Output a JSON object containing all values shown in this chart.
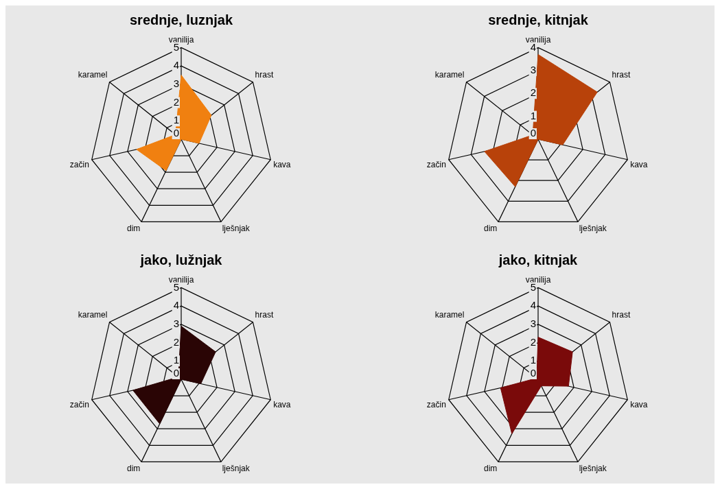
{
  "chart_data": [
    {
      "type": "radar",
      "title": "srednje, luznjak",
      "categories": [
        "vanilija",
        "hrast",
        "kava",
        "lješnjak",
        "dim",
        "začin",
        "karamel"
      ],
      "ylim": [
        0,
        5
      ],
      "yticks": [
        0,
        1,
        2,
        3,
        4,
        5
      ],
      "grid": true,
      "series": [
        {
          "color": "#f08010",
          "values": [
            3.5,
            2.1,
            1.0,
            0,
            1.9,
            2.5,
            0.4
          ]
        }
      ]
    },
    {
      "type": "radar",
      "title": "srednje, kitnjak",
      "categories": [
        "vanilija",
        "hrast",
        "kava",
        "lješnjak",
        "dim",
        "začin",
        "karamel"
      ],
      "ylim": [
        0,
        4
      ],
      "yticks": [
        0,
        1,
        2,
        3,
        4
      ],
      "grid": true,
      "series": [
        {
          "color": "#b8420a",
          "values": [
            3.7,
            3.3,
            1.1,
            0,
            2.3,
            2.4,
            0.3
          ]
        }
      ]
    },
    {
      "type": "radar",
      "title": "jako, lužnjak",
      "categories": [
        "vanilija",
        "hrast",
        "kava",
        "lješnjak",
        "dim",
        "začin",
        "karamel"
      ],
      "ylim": [
        0,
        5
      ],
      "yticks": [
        0,
        1,
        2,
        3,
        4,
        5
      ],
      "grid": true,
      "series": [
        {
          "color": "#2a0505",
          "values": [
            2.9,
            2.4,
            1.1,
            0,
            2.7,
            2.7,
            0.2
          ]
        }
      ]
    },
    {
      "type": "radar",
      "title": "jako, kitnjak",
      "categories": [
        "vanilija",
        "hrast",
        "kava",
        "lješnjak",
        "dim",
        "začin",
        "karamel"
      ],
      "ylim": [
        0,
        5
      ],
      "yticks": [
        0,
        1,
        2,
        3,
        4,
        5
      ],
      "grid": true,
      "series": [
        {
          "color": "#7a0a0a",
          "values": [
            2.3,
            2.4,
            1.7,
            0.4,
            3.3,
            2.1,
            0.1
          ]
        }
      ]
    }
  ]
}
